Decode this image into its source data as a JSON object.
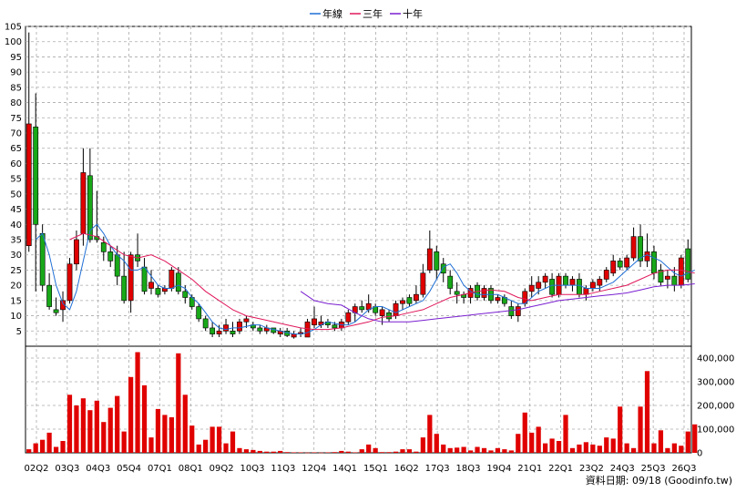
{
  "chart_data": {
    "type": "candlestick",
    "legend": [
      {
        "name": "年線",
        "color": "#1f6fd6"
      },
      {
        "name": "三年",
        "color": "#e0185a"
      },
      {
        "name": "十年",
        "color": "#7a1fd0"
      }
    ],
    "price_axis": {
      "min": 0,
      "max": 105,
      "ticks": [
        5,
        10,
        15,
        20,
        25,
        30,
        35,
        40,
        45,
        50,
        55,
        60,
        65,
        70,
        75,
        80,
        85,
        90,
        95,
        100,
        105
      ]
    },
    "volume_axis": {
      "min": 0,
      "max": 450000,
      "ticks": [
        0,
        100000,
        200000,
        300000,
        400000
      ],
      "tick_labels": [
        "0",
        "100,000",
        "200,000",
        "300,000",
        "400,000"
      ]
    },
    "x_labels": [
      "02Q2",
      "03Q3",
      "04Q3",
      "05Q4",
      "07Q1",
      "08Q1",
      "09Q2",
      "10Q3",
      "11Q3",
      "12Q4",
      "14Q1",
      "15Q1",
      "16Q2",
      "17Q3",
      "18Q3",
      "19Q4",
      "21Q1",
      "22Q1",
      "23Q2",
      "24Q3",
      "25Q3",
      "26Q3"
    ],
    "colors": {
      "up": "#e00000",
      "down": "#18a818",
      "volume": "#e00000",
      "grid": "#aaaaaa"
    },
    "candles": [
      {
        "o": 33,
        "h": 103,
        "l": 31,
        "c": 73
      },
      {
        "o": 72,
        "h": 83,
        "l": 18,
        "c": 40
      },
      {
        "o": 37,
        "h": 40,
        "l": 18,
        "c": 20
      },
      {
        "o": 20,
        "h": 24,
        "l": 12,
        "c": 13
      },
      {
        "o": 12,
        "h": 16,
        "l": 10,
        "c": 11
      },
      {
        "o": 12,
        "h": 18,
        "l": 8,
        "c": 15
      },
      {
        "o": 15,
        "h": 29,
        "l": 14,
        "c": 27
      },
      {
        "o": 27,
        "h": 38,
        "l": 25,
        "c": 35
      },
      {
        "o": 37,
        "h": 65,
        "l": 33,
        "c": 57
      },
      {
        "o": 56,
        "h": 65,
        "l": 34,
        "c": 35
      },
      {
        "o": 36,
        "h": 51,
        "l": 34,
        "c": 35
      },
      {
        "o": 34,
        "h": 36,
        "l": 28,
        "c": 31
      },
      {
        "o": 31,
        "h": 33,
        "l": 26,
        "c": 28
      },
      {
        "o": 30,
        "h": 33,
        "l": 20,
        "c": 23
      },
      {
        "o": 23,
        "h": 31,
        "l": 14,
        "c": 15
      },
      {
        "o": 15,
        "h": 31,
        "l": 11,
        "c": 30
      },
      {
        "o": 30,
        "h": 37,
        "l": 26,
        "c": 28
      },
      {
        "o": 26,
        "h": 29,
        "l": 17,
        "c": 18
      },
      {
        "o": 19,
        "h": 25,
        "l": 17,
        "c": 21
      },
      {
        "o": 19,
        "h": 20,
        "l": 16,
        "c": 17
      },
      {
        "o": 18,
        "h": 20,
        "l": 17,
        "c": 19
      },
      {
        "o": 19,
        "h": 26,
        "l": 18,
        "c": 25
      },
      {
        "o": 24,
        "h": 26,
        "l": 17,
        "c": 18
      },
      {
        "o": 18,
        "h": 20,
        "l": 14,
        "c": 16
      },
      {
        "o": 16,
        "h": 17,
        "l": 12,
        "c": 13
      },
      {
        "o": 13,
        "h": 14,
        "l": 8,
        "c": 9
      },
      {
        "o": 9,
        "h": 10,
        "l": 5,
        "c": 6
      },
      {
        "o": 6,
        "h": 8,
        "l": 3,
        "c": 4
      },
      {
        "o": 4,
        "h": 7,
        "l": 3,
        "c": 5
      },
      {
        "o": 5,
        "h": 9,
        "l": 4,
        "c": 7
      },
      {
        "o": 5,
        "h": 8,
        "l": 3,
        "c": 4
      },
      {
        "o": 5,
        "h": 9,
        "l": 4,
        "c": 8
      },
      {
        "o": 8,
        "h": 10,
        "l": 6,
        "c": 9
      },
      {
        "o": 7,
        "h": 8,
        "l": 5,
        "c": 6
      },
      {
        "o": 6,
        "h": 7,
        "l": 4,
        "c": 5
      },
      {
        "o": 5,
        "h": 7,
        "l": 4,
        "c": 6
      },
      {
        "o": 6,
        "h": 6,
        "l": 4,
        "c": 4.5
      },
      {
        "o": 4,
        "h": 6,
        "l": 3,
        "c": 5
      },
      {
        "o": 5,
        "h": 6,
        "l": 3,
        "c": 3.5
      },
      {
        "o": 3,
        "h": 5,
        "l": 2.5,
        "c": 4
      },
      {
        "o": 4,
        "h": 6,
        "l": 3,
        "c": 4.5
      },
      {
        "o": 3,
        "h": 9,
        "l": 3,
        "c": 8
      },
      {
        "o": 7,
        "h": 13,
        "l": 6,
        "c": 9
      },
      {
        "o": 7,
        "h": 10,
        "l": 6,
        "c": 8
      },
      {
        "o": 8,
        "h": 9,
        "l": 6,
        "c": 7
      },
      {
        "o": 7,
        "h": 8,
        "l": 5,
        "c": 6
      },
      {
        "o": 6,
        "h": 9,
        "l": 5,
        "c": 8
      },
      {
        "o": 8,
        "h": 12,
        "l": 7,
        "c": 11
      },
      {
        "o": 11,
        "h": 14,
        "l": 8,
        "c": 13
      },
      {
        "o": 13,
        "h": 15,
        "l": 11,
        "c": 12
      },
      {
        "o": 12,
        "h": 17,
        "l": 11,
        "c": 14
      },
      {
        "o": 13,
        "h": 14,
        "l": 10,
        "c": 11
      },
      {
        "o": 10,
        "h": 13,
        "l": 7,
        "c": 12
      },
      {
        "o": 11,
        "h": 12,
        "l": 8,
        "c": 9
      },
      {
        "o": 10,
        "h": 15,
        "l": 9,
        "c": 14
      },
      {
        "o": 14,
        "h": 16,
        "l": 12,
        "c": 15
      },
      {
        "o": 16,
        "h": 17,
        "l": 13,
        "c": 14
      },
      {
        "o": 15,
        "h": 20,
        "l": 14,
        "c": 17
      },
      {
        "o": 17,
        "h": 27,
        "l": 16,
        "c": 24
      },
      {
        "o": 25,
        "h": 38,
        "l": 24,
        "c": 32
      },
      {
        "o": 31,
        "h": 33,
        "l": 22,
        "c": 25
      },
      {
        "o": 27,
        "h": 29,
        "l": 21,
        "c": 24
      },
      {
        "o": 23,
        "h": 25,
        "l": 17,
        "c": 19
      },
      {
        "o": 18,
        "h": 21,
        "l": 14,
        "c": 17
      },
      {
        "o": 17,
        "h": 18,
        "l": 14,
        "c": 16
      },
      {
        "o": 16,
        "h": 20,
        "l": 14,
        "c": 19
      },
      {
        "o": 20,
        "h": 21,
        "l": 15,
        "c": 16
      },
      {
        "o": 16,
        "h": 20,
        "l": 15,
        "c": 19
      },
      {
        "o": 19,
        "h": 20,
        "l": 14,
        "c": 15
      },
      {
        "o": 15,
        "h": 17,
        "l": 14,
        "c": 16
      },
      {
        "o": 16,
        "h": 17,
        "l": 13,
        "c": 14
      },
      {
        "o": 13,
        "h": 15,
        "l": 9,
        "c": 10
      },
      {
        "o": 10,
        "h": 14,
        "l": 8,
        "c": 13
      },
      {
        "o": 14,
        "h": 19,
        "l": 13,
        "c": 18
      },
      {
        "o": 18,
        "h": 23,
        "l": 16,
        "c": 20
      },
      {
        "o": 19,
        "h": 23,
        "l": 17,
        "c": 21
      },
      {
        "o": 21,
        "h": 24,
        "l": 19,
        "c": 23
      },
      {
        "o": 22,
        "h": 24,
        "l": 16,
        "c": 17
      },
      {
        "o": 17,
        "h": 24,
        "l": 16,
        "c": 23
      },
      {
        "o": 23,
        "h": 24,
        "l": 19,
        "c": 20
      },
      {
        "o": 20,
        "h": 23,
        "l": 18,
        "c": 22
      },
      {
        "o": 22,
        "h": 24,
        "l": 16,
        "c": 17
      },
      {
        "o": 17,
        "h": 20,
        "l": 15,
        "c": 19
      },
      {
        "o": 19,
        "h": 22,
        "l": 18,
        "c": 21
      },
      {
        "o": 20,
        "h": 23,
        "l": 18,
        "c": 22
      },
      {
        "o": 22,
        "h": 26,
        "l": 21,
        "c": 25
      },
      {
        "o": 24,
        "h": 30,
        "l": 23,
        "c": 28
      },
      {
        "o": 28,
        "h": 29,
        "l": 25,
        "c": 26
      },
      {
        "o": 26,
        "h": 30,
        "l": 25,
        "c": 29
      },
      {
        "o": 29,
        "h": 39,
        "l": 28,
        "c": 36
      },
      {
        "o": 36,
        "h": 40,
        "l": 26,
        "c": 28
      },
      {
        "o": 28,
        "h": 37,
        "l": 26,
        "c": 31
      },
      {
        "o": 31,
        "h": 33,
        "l": 22,
        "c": 24
      },
      {
        "o": 25,
        "h": 27,
        "l": 20,
        "c": 21
      },
      {
        "o": 22,
        "h": 25,
        "l": 19,
        "c": 23
      },
      {
        "o": 23,
        "h": 26,
        "l": 18,
        "c": 20
      },
      {
        "o": 20,
        "h": 30,
        "l": 19,
        "c": 29
      },
      {
        "o": 32,
        "h": 35,
        "l": 21,
        "c": 22
      }
    ],
    "volume": [
      15000,
      40000,
      55000,
      85000,
      25000,
      50000,
      245000,
      200000,
      230000,
      180000,
      220000,
      130000,
      190000,
      240000,
      90000,
      320000,
      425000,
      285000,
      65000,
      185000,
      160000,
      150000,
      420000,
      245000,
      115000,
      35000,
      55000,
      110000,
      110000,
      40000,
      90000,
      20000,
      15000,
      12000,
      8000,
      5000,
      5000,
      8000,
      3000,
      2000,
      2000,
      1000,
      2000,
      1000,
      2000,
      3000,
      8000,
      5000,
      2000,
      15000,
      35000,
      20000,
      3000,
      3000,
      5000,
      15000,
      15000,
      5000,
      65000,
      160000,
      80000,
      35000,
      20000,
      22000,
      25000,
      10000,
      25000,
      20000,
      10000,
      20000,
      15000,
      10000,
      80000,
      170000,
      85000,
      110000,
      40000,
      60000,
      50000,
      160000,
      20000,
      35000,
      45000,
      35000,
      30000,
      65000,
      60000,
      195000,
      40000,
      20000,
      195000,
      345000,
      40000,
      95000,
      20000,
      40000,
      30000,
      90000,
      120000
    ],
    "ma_year": [
      [
        1,
        35
      ],
      [
        2,
        37
      ],
      [
        3,
        30
      ],
      [
        4,
        20
      ],
      [
        5,
        14
      ],
      [
        6,
        12
      ],
      [
        7,
        18
      ],
      [
        8,
        28
      ],
      [
        9,
        38
      ],
      [
        10,
        40
      ],
      [
        11,
        37
      ],
      [
        12,
        33
      ],
      [
        13,
        30
      ],
      [
        14,
        28
      ],
      [
        15,
        25
      ],
      [
        16,
        25
      ],
      [
        17,
        26
      ],
      [
        18,
        23
      ],
      [
        19,
        20
      ],
      [
        20,
        19
      ],
      [
        21,
        19
      ],
      [
        22,
        20
      ],
      [
        23,
        19
      ],
      [
        24,
        16
      ],
      [
        25,
        14
      ],
      [
        26,
        11
      ],
      [
        27,
        8
      ],
      [
        28,
        6
      ],
      [
        29,
        5.5
      ],
      [
        30,
        6
      ],
      [
        31,
        6
      ],
      [
        32,
        6.5
      ],
      [
        33,
        7
      ],
      [
        34,
        7
      ],
      [
        35,
        6
      ],
      [
        36,
        5.5
      ],
      [
        37,
        5
      ],
      [
        38,
        4.5
      ],
      [
        39,
        4
      ],
      [
        40,
        4
      ],
      [
        41,
        4.5
      ],
      [
        42,
        5.5
      ],
      [
        43,
        7
      ],
      [
        44,
        8
      ],
      [
        45,
        7.5
      ],
      [
        46,
        7
      ],
      [
        47,
        7
      ],
      [
        48,
        8
      ],
      [
        49,
        10
      ],
      [
        50,
        12
      ],
      [
        51,
        13
      ],
      [
        52,
        13
      ],
      [
        53,
        12
      ],
      [
        54,
        11
      ],
      [
        55,
        12
      ],
      [
        56,
        13
      ],
      [
        57,
        14
      ],
      [
        58,
        15
      ],
      [
        59,
        18
      ],
      [
        60,
        22
      ],
      [
        61,
        26
      ],
      [
        62,
        27
      ],
      [
        63,
        24
      ],
      [
        64,
        20
      ],
      [
        65,
        18
      ],
      [
        66,
        17
      ],
      [
        67,
        17
      ],
      [
        68,
        17
      ],
      [
        69,
        17
      ],
      [
        70,
        16
      ],
      [
        71,
        15
      ],
      [
        72,
        14
      ],
      [
        73,
        14
      ],
      [
        74,
        16
      ],
      [
        75,
        18
      ],
      [
        76,
        19
      ],
      [
        77,
        20
      ],
      [
        78,
        20
      ],
      [
        79,
        20
      ],
      [
        80,
        20
      ],
      [
        81,
        20
      ],
      [
        82,
        19
      ],
      [
        83,
        19
      ],
      [
        84,
        19
      ],
      [
        85,
        20
      ],
      [
        86,
        21
      ],
      [
        87,
        23
      ],
      [
        88,
        25
      ],
      [
        89,
        27
      ],
      [
        90,
        29
      ],
      [
        91,
        30
      ],
      [
        92,
        29
      ],
      [
        93,
        28
      ],
      [
        94,
        26
      ],
      [
        95,
        24
      ],
      [
        96,
        23
      ],
      [
        97,
        24
      ],
      [
        98,
        25
      ]
    ],
    "ma_3y": [
      [
        6,
        35
      ],
      [
        8,
        37
      ],
      [
        10,
        36
      ],
      [
        12,
        33
      ],
      [
        14,
        30
      ],
      [
        16,
        29
      ],
      [
        18,
        30
      ],
      [
        20,
        28
      ],
      [
        22,
        25
      ],
      [
        24,
        22
      ],
      [
        26,
        18
      ],
      [
        28,
        15
      ],
      [
        30,
        12
      ],
      [
        32,
        10
      ],
      [
        34,
        9
      ],
      [
        36,
        8
      ],
      [
        38,
        7
      ],
      [
        40,
        6
      ],
      [
        42,
        5.5
      ],
      [
        44,
        5.5
      ],
      [
        46,
        6
      ],
      [
        48,
        7
      ],
      [
        50,
        8
      ],
      [
        52,
        9.5
      ],
      [
        54,
        10
      ],
      [
        56,
        11
      ],
      [
        58,
        12
      ],
      [
        60,
        14
      ],
      [
        62,
        16
      ],
      [
        64,
        17
      ],
      [
        66,
        18
      ],
      [
        68,
        18.5
      ],
      [
        70,
        18
      ],
      [
        72,
        16
      ],
      [
        74,
        15
      ],
      [
        76,
        16
      ],
      [
        78,
        17
      ],
      [
        80,
        17
      ],
      [
        82,
        17
      ],
      [
        84,
        18
      ],
      [
        86,
        19
      ],
      [
        88,
        20
      ],
      [
        90,
        22
      ],
      [
        92,
        24
      ],
      [
        94,
        25
      ],
      [
        96,
        25
      ],
      [
        98,
        24
      ]
    ],
    "ma_10y": [
      [
        40,
        18
      ],
      [
        42,
        15
      ],
      [
        44,
        14
      ],
      [
        46,
        13.5
      ],
      [
        48,
        11
      ],
      [
        50,
        9
      ],
      [
        52,
        8
      ],
      [
        54,
        8
      ],
      [
        56,
        8
      ],
      [
        58,
        8.5
      ],
      [
        60,
        9
      ],
      [
        62,
        9.5
      ],
      [
        64,
        10
      ],
      [
        66,
        10.5
      ],
      [
        68,
        11
      ],
      [
        70,
        11.5
      ],
      [
        72,
        12
      ],
      [
        74,
        13
      ],
      [
        76,
        14
      ],
      [
        78,
        15
      ],
      [
        80,
        15.5
      ],
      [
        82,
        16
      ],
      [
        84,
        16.5
      ],
      [
        86,
        17
      ],
      [
        88,
        17.5
      ],
      [
        90,
        18.5
      ],
      [
        92,
        19.5
      ],
      [
        94,
        20
      ],
      [
        96,
        20
      ],
      [
        98,
        20.5
      ]
    ],
    "source_label": "資料日期: 09/18 (Goodinfo.tw)"
  }
}
